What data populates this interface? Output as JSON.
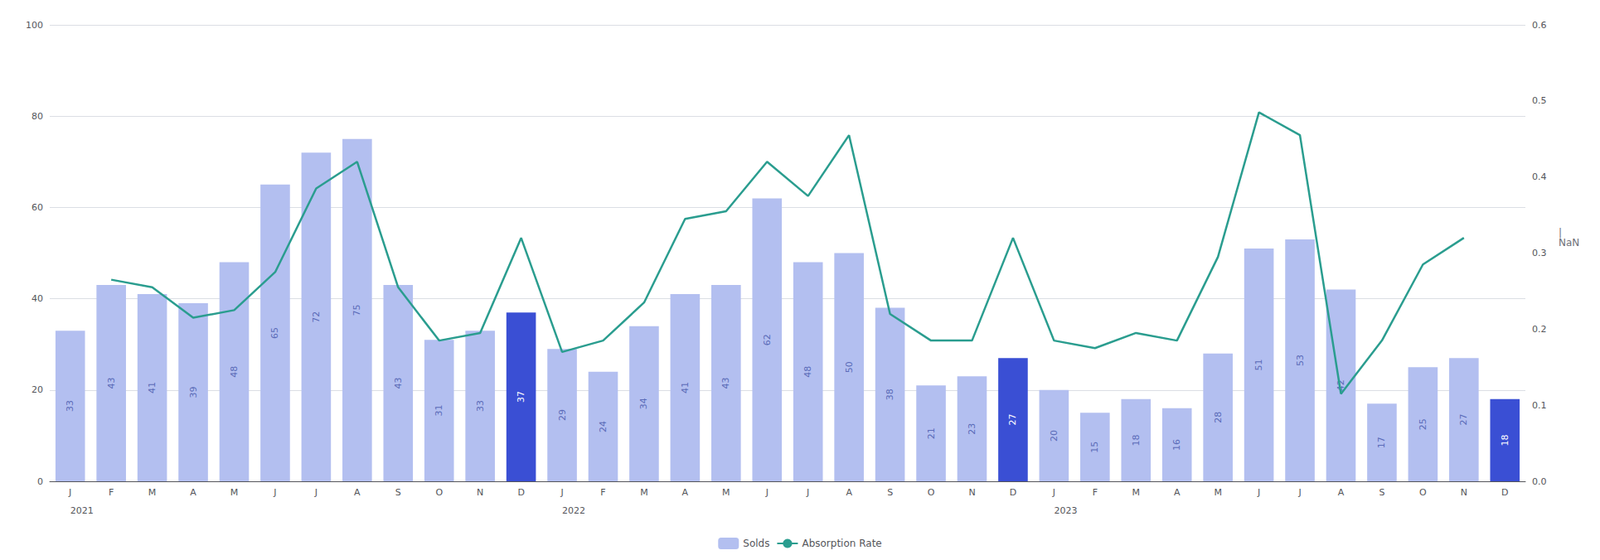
{
  "chart_data": {
    "type": "bar",
    "categories": [
      "J",
      "F",
      "M",
      "A",
      "M",
      "J",
      "J",
      "A",
      "S",
      "O",
      "N",
      "D",
      "J",
      "F",
      "M",
      "A",
      "M",
      "J",
      "J",
      "A",
      "S",
      "O",
      "N",
      "D",
      "J",
      "F",
      "M",
      "A",
      "M",
      "J",
      "J",
      "A",
      "S",
      "O",
      "N",
      "D"
    ],
    "series": [
      {
        "name": "Solds",
        "type": "bar",
        "color": "#b3bff0",
        "data_labels": true,
        "colors": [
          "#b3bff0",
          "#b3bff0",
          "#b3bff0",
          "#b3bff0",
          "#b3bff0",
          "#b3bff0",
          "#b3bff0",
          "#b3bff0",
          "#b3bff0",
          "#b3bff0",
          "#b3bff0",
          "#3a4fd4",
          "#b3bff0",
          "#b3bff0",
          "#b3bff0",
          "#b3bff0",
          "#b3bff0",
          "#b3bff0",
          "#b3bff0",
          "#b3bff0",
          "#b3bff0",
          "#b3bff0",
          "#b3bff0",
          "#3a4fd4",
          "#b3bff0",
          "#b3bff0",
          "#b3bff0",
          "#b3bff0",
          "#b3bff0",
          "#b3bff0",
          "#b3bff0",
          "#b3bff0",
          "#b3bff0",
          "#b3bff0",
          "#b3bff0",
          "#3a4fd4"
        ],
        "values": [
          33,
          43,
          41,
          39,
          48,
          65,
          72,
          75,
          43,
          31,
          33,
          37,
          29,
          24,
          34,
          41,
          43,
          62,
          48,
          50,
          38,
          21,
          23,
          27,
          20,
          15,
          18,
          16,
          28,
          51,
          53,
          42,
          17,
          25,
          27,
          18
        ]
      },
      {
        "name": "Absorption Rate",
        "type": "line",
        "axis": "y2",
        "color": "#2a9d8f",
        "values": [
          null,
          0.265,
          0.255,
          0.215,
          0.225,
          0.275,
          0.385,
          0.42,
          0.255,
          0.185,
          0.195,
          0.32,
          0.17,
          0.185,
          0.235,
          0.345,
          0.355,
          0.42,
          0.375,
          0.455,
          0.22,
          0.185,
          0.185,
          0.32,
          0.185,
          0.175,
          0.195,
          0.185,
          0.295,
          0.485,
          0.455,
          0.115,
          0.185,
          0.285,
          0.32,
          null
        ]
      }
    ],
    "ylim": [
      0,
      100
    ],
    "yticks": [
      0,
      20,
      40,
      60,
      80,
      100
    ],
    "y2lim": [
      0,
      0.6
    ],
    "y2ticks": [
      {
        "value": 0,
        "label": "0.0"
      },
      0.1,
      0.2,
      0.3,
      0.4,
      0.5,
      0.6
    ],
    "annotations": [
      {
        "text": "2021",
        "x": 0
      },
      {
        "text": "2022",
        "x": 12
      },
      {
        "text": "2023",
        "x": 24
      },
      {
        "text": "|\nNaN",
        "axis": "y2",
        "y": 0.32
      }
    ],
    "grid": true,
    "legend": "bottom"
  }
}
